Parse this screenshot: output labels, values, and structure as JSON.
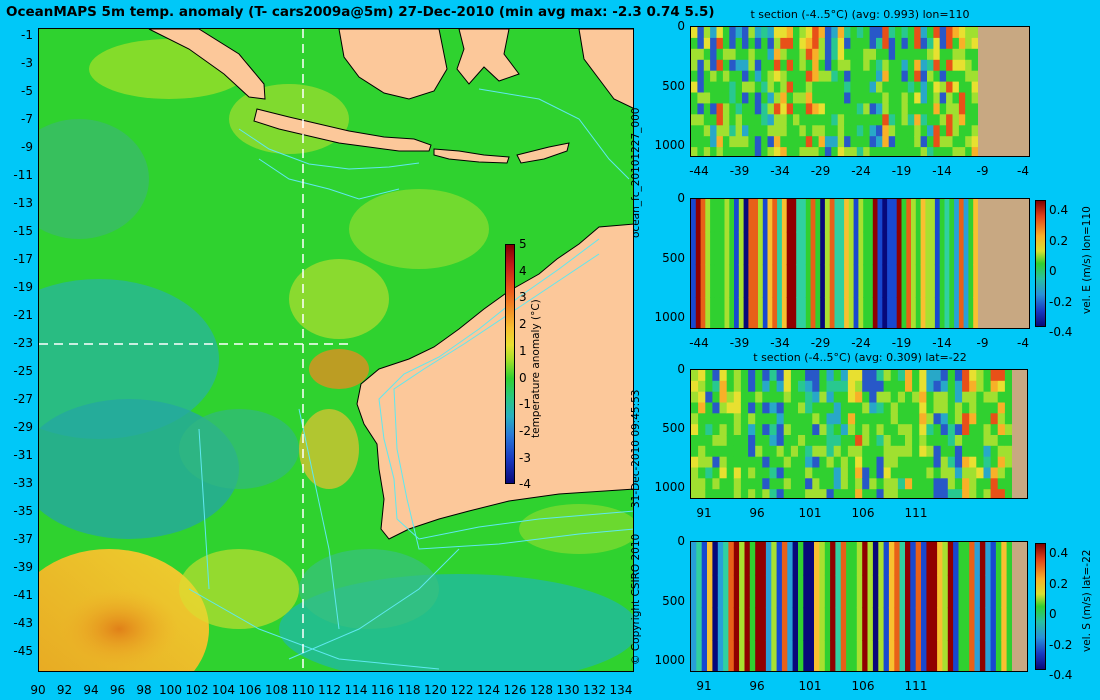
{
  "title": "OceanMAPS 5m temp. anomaly (T- cars2009a@5m) 27-Dec-2010 (min avg max: -2.3 0.74 5.5)",
  "side_labels": {
    "forecast_id": "ocean_fc_20101227_000",
    "run_time": "31-Dec-2010 09:45:53",
    "copyright": "© Copyright CSIRO 2010"
  },
  "colors": {
    "background": "#00c8f8",
    "land": "#fcc89a",
    "section_land": "#c8a882",
    "ocean_green": "#2fd22f",
    "contour": "#5fe8f0",
    "section_line": "#ffffff"
  },
  "chart_data": [
    {
      "type": "heatmap",
      "name": "map",
      "title": "OceanMAPS 5m temp. anomaly (T- cars2009a@5m) 27-Dec-2010 (min avg max: -2.3 0.74 5.5)",
      "x_ticks": [
        "90",
        "92",
        "94",
        "96",
        "98",
        "100",
        "102",
        "104",
        "106",
        "108",
        "110",
        "112",
        "114",
        "116",
        "118",
        "120",
        "122",
        "124",
        "126",
        "128",
        "130",
        "132",
        "134"
      ],
      "y_ticks": [
        "-1",
        "-3",
        "-5",
        "-7",
        "-9",
        "-11",
        "-13",
        "-15",
        "-17",
        "-19",
        "-21",
        "-23",
        "-25",
        "-27",
        "-29",
        "-31",
        "-33",
        "-35",
        "-37",
        "-39",
        "-41",
        "-43",
        "-45"
      ],
      "xlim": [
        90,
        135
      ],
      "ylim": [
        -45,
        0
      ],
      "section_lon": 110,
      "section_lat": -22,
      "min": -2.3,
      "avg": 0.74,
      "max": 5.5,
      "colorbar": {
        "label": "temperature anomaly (°C)",
        "ticks": [
          "5",
          "4",
          "3",
          "2",
          "1",
          "0",
          "-1",
          "-2",
          "-3",
          "-4"
        ],
        "range": [
          -4,
          5
        ]
      }
    },
    {
      "type": "heatmap",
      "name": "t-section-lon110",
      "title": "t section (-4..5°C) (avg: 0.993) lon=110",
      "x_ticks": [
        "-44",
        "-39",
        "-34",
        "-29",
        "-24",
        "-19",
        "-14",
        "-9",
        "-4"
      ],
      "y_ticks": [
        "0",
        "500",
        "1000"
      ],
      "avg": 0.993
    },
    {
      "type": "heatmap",
      "name": "vel-e-section-lon110",
      "x_ticks": [
        "-44",
        "-39",
        "-34",
        "-29",
        "-24",
        "-19",
        "-14",
        "-9",
        "-4"
      ],
      "y_ticks": [
        "0",
        "500",
        "1000"
      ],
      "colorbar": {
        "label": "vel. E (m/s) lon=110",
        "ticks": [
          "0.4",
          "0.2",
          "0",
          "-0.2",
          "-0.4"
        ],
        "range": [
          -0.4,
          0.4
        ]
      }
    },
    {
      "type": "heatmap",
      "name": "t-section-lat-22",
      "title": "t section (-4..5°C) (avg: 0.309) lat=-22",
      "x_ticks": [
        "91",
        "96",
        "101",
        "106",
        "111"
      ],
      "y_ticks": [
        "0",
        "500",
        "1000"
      ],
      "avg": 0.309
    },
    {
      "type": "heatmap",
      "name": "vel-s-section-lat-22",
      "x_ticks": [
        "91",
        "96",
        "101",
        "106",
        "111"
      ],
      "y_ticks": [
        "0",
        "500",
        "1000"
      ],
      "colorbar": {
        "label": "vel. S (m/s) lat=-22",
        "ticks": [
          "0.4",
          "0.2",
          "0",
          "-0.2",
          "-0.4"
        ],
        "range": [
          -0.4,
          0.4
        ]
      }
    }
  ]
}
